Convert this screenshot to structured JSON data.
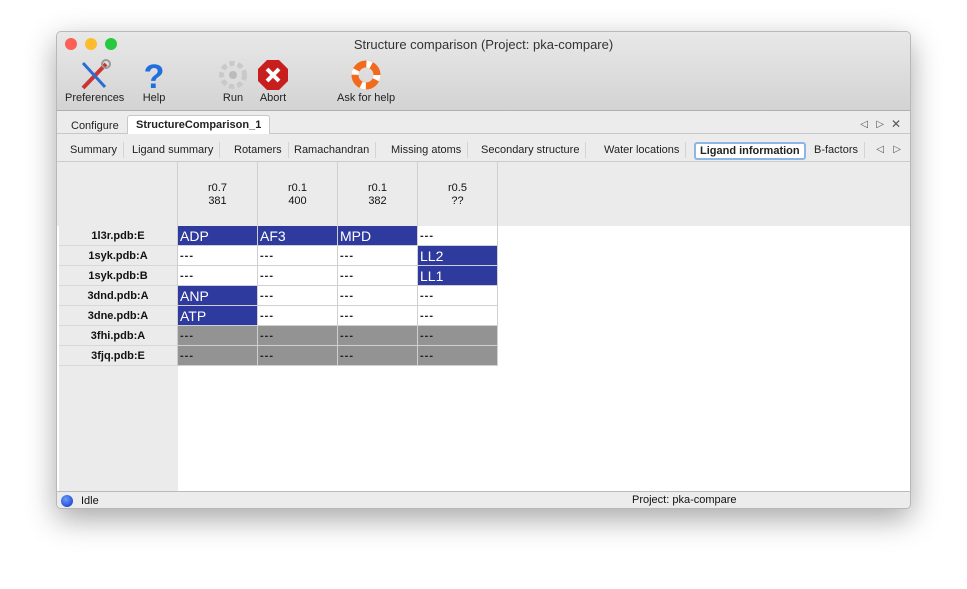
{
  "window": {
    "title": "Structure comparison (Project: pka-compare)"
  },
  "toolbar": [
    {
      "label": "Preferences",
      "icon": "preferences-icon"
    },
    {
      "label": "Help",
      "icon": "help-icon"
    },
    {
      "label": "Run",
      "icon": "gear-icon"
    },
    {
      "label": "Abort",
      "icon": "abort-icon"
    },
    {
      "label": "Ask for help",
      "icon": "lifebuoy-icon"
    }
  ],
  "tabs": [
    {
      "label": "Configure"
    },
    {
      "label": "StructureComparison_1",
      "active": true
    }
  ],
  "subtabs": [
    {
      "label": "Summary"
    },
    {
      "label": "Ligand summary"
    },
    {
      "label": "Rotamers"
    },
    {
      "label": "Ramachandran"
    },
    {
      "label": "Missing atoms"
    },
    {
      "label": "Secondary structure"
    },
    {
      "label": "Water locations"
    },
    {
      "label": "Ligand information",
      "active": true
    },
    {
      "label": "B-factors"
    }
  ],
  "table": {
    "columns": [
      {
        "l1": "r0.7",
        "l2": "381"
      },
      {
        "l1": "r0.1",
        "l2": "400"
      },
      {
        "l1": "r0.1",
        "l2": "382"
      },
      {
        "l1": "r0.5",
        "l2": "??"
      }
    ],
    "rows": [
      {
        "name": "1l3r.pdb:E",
        "cells": [
          "ADP",
          "AF3",
          "MPD",
          "---"
        ],
        "state": [
          "hit",
          "hit",
          "hit",
          ""
        ]
      },
      {
        "name": "1syk.pdb:A",
        "cells": [
          "---",
          "---",
          "---",
          "LL2"
        ],
        "state": [
          "",
          "",
          "",
          "hit"
        ]
      },
      {
        "name": "1syk.pdb:B",
        "cells": [
          "---",
          "---",
          "---",
          "LL1"
        ],
        "state": [
          "",
          "",
          "",
          "hit"
        ]
      },
      {
        "name": "3dnd.pdb:A",
        "cells": [
          "ANP",
          "---",
          "---",
          "---"
        ],
        "state": [
          "hit",
          "",
          "",
          ""
        ]
      },
      {
        "name": "3dne.pdb:A",
        "cells": [
          "ATP",
          "---",
          "---",
          "---"
        ],
        "state": [
          "hit",
          "",
          "",
          ""
        ]
      },
      {
        "name": "3fhi.pdb:A",
        "cells": [
          "---",
          "---",
          "---",
          "---"
        ],
        "state": [
          "gray",
          "gray",
          "gray",
          "gray"
        ]
      },
      {
        "name": "3fjq.pdb:E",
        "cells": [
          "---",
          "---",
          "---",
          "---"
        ],
        "state": [
          "gray",
          "gray",
          "gray",
          "gray"
        ]
      }
    ]
  },
  "colors": {
    "hit": "#2f3a9e",
    "missing": "#939393"
  },
  "status": {
    "state": "Idle",
    "project": "Project: pka-compare"
  }
}
